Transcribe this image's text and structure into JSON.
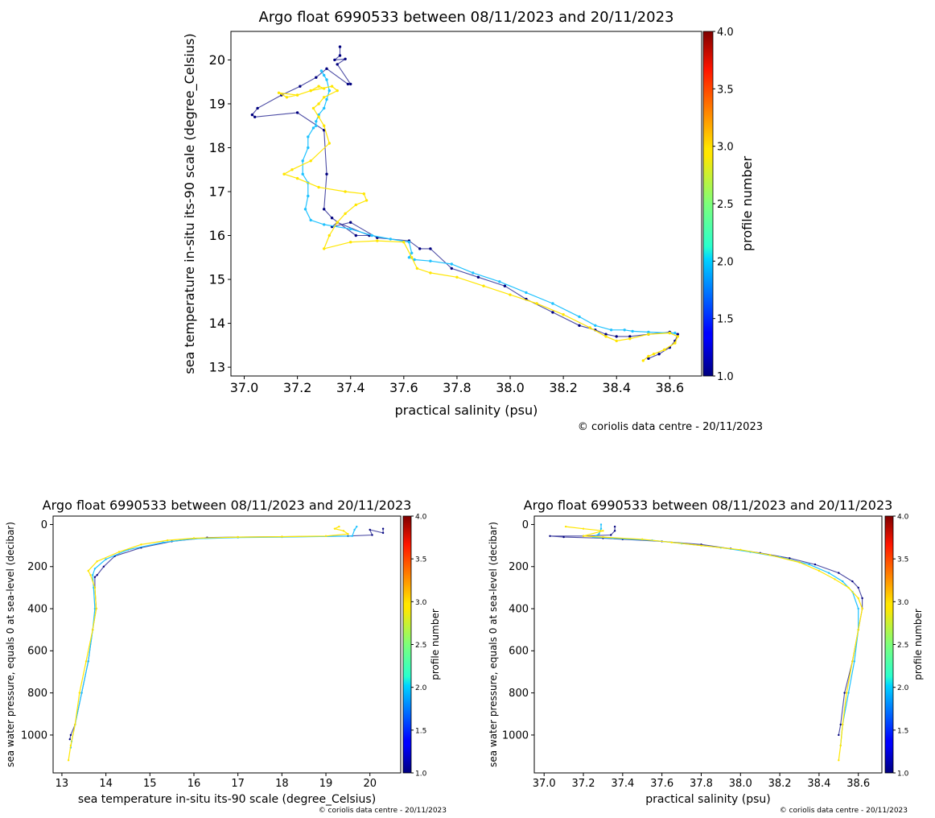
{
  "chart_data": [
    {
      "type": "scatter",
      "title": "Argo float 6990533 between 08/11/2023 and 20/11/2023",
      "xlabel": "practical salinity (psu)",
      "ylabel": "sea temperature in-situ its-90 scale (degree_Celsius)",
      "xlim": [
        36.95,
        38.72
      ],
      "ylim": [
        12.8,
        20.65
      ],
      "xticks": [
        "37.0",
        "37.2",
        "37.4",
        "37.6",
        "37.8",
        "38.0",
        "38.2",
        "38.4",
        "38.6"
      ],
      "yticks": [
        "13",
        "14",
        "15",
        "16",
        "17",
        "18",
        "19",
        "20"
      ],
      "colorbar": {
        "label": "profile number",
        "min": 1.0,
        "max": 4.0,
        "ticks": [
          "1.0",
          "1.5",
          "2.0",
          "2.5",
          "3.0",
          "3.5",
          "4.0"
        ]
      },
      "credit": "© coriolis data centre - 20/11/2023",
      "series": [
        {
          "profile": 1,
          "color": "#00007f",
          "x": [
            37.36,
            37.36,
            37.34,
            37.38,
            37.35,
            37.4,
            37.39,
            37.31,
            37.27,
            37.21,
            37.14,
            37.05,
            37.03,
            37.04,
            37.2,
            37.3,
            37.31,
            37.3,
            37.33,
            37.42,
            37.47,
            37.35,
            37.33,
            37.4,
            37.5,
            37.62,
            37.66,
            37.7,
            37.78,
            37.88,
            37.98,
            38.06,
            38.16,
            38.26,
            38.32,
            38.36,
            38.4,
            38.45,
            38.52,
            38.6,
            38.63,
            38.62,
            38.6,
            38.56,
            38.52
          ],
          "y": [
            20.3,
            20.1,
            20.0,
            20.02,
            19.9,
            19.45,
            19.45,
            19.8,
            19.6,
            19.4,
            19.2,
            18.9,
            18.75,
            18.7,
            18.8,
            18.4,
            17.4,
            16.6,
            16.4,
            16.0,
            16.0,
            16.3,
            16.2,
            16.3,
            15.95,
            15.88,
            15.7,
            15.7,
            15.25,
            15.05,
            14.85,
            14.55,
            14.25,
            13.95,
            13.85,
            13.75,
            13.7,
            13.7,
            13.75,
            13.8,
            13.75,
            13.6,
            13.45,
            13.3,
            13.2
          ]
        },
        {
          "profile": 2,
          "color": "#1fc2ff",
          "x": [
            37.29,
            37.3,
            37.31,
            37.32,
            37.31,
            37.3,
            37.28,
            37.27,
            37.27,
            37.26,
            37.24,
            37.24,
            37.22,
            37.22,
            37.24,
            37.24,
            37.23,
            37.25,
            37.3,
            37.4,
            37.48,
            37.55,
            37.62,
            37.63,
            37.62,
            37.64,
            37.7,
            37.78,
            37.86,
            37.96,
            38.06,
            38.16,
            38.26,
            38.32,
            38.38,
            38.43,
            38.46,
            38.52,
            38.6,
            38.62
          ],
          "y": [
            19.75,
            19.65,
            19.55,
            19.3,
            19.1,
            18.9,
            18.75,
            18.6,
            18.5,
            18.45,
            18.25,
            18.0,
            17.7,
            17.4,
            17.2,
            16.9,
            16.6,
            16.35,
            16.25,
            16.15,
            16.0,
            15.92,
            15.85,
            15.6,
            15.5,
            15.45,
            15.42,
            15.35,
            15.15,
            14.95,
            14.7,
            14.45,
            14.15,
            13.95,
            13.85,
            13.85,
            13.82,
            13.8,
            13.78,
            13.78
          ]
        },
        {
          "profile": 3,
          "color": "#ffe600",
          "x": [
            37.3,
            37.28,
            37.25,
            37.2,
            37.16,
            37.13,
            37.2,
            37.25,
            37.33,
            37.35,
            37.3,
            37.28,
            37.26,
            37.28,
            37.3,
            37.32,
            37.25,
            37.18,
            37.15,
            37.2,
            37.28,
            37.38,
            37.45,
            37.46,
            37.42,
            37.38,
            37.35,
            37.32,
            37.3,
            37.4,
            37.5,
            37.6,
            37.63,
            37.65,
            37.7,
            37.8,
            37.9,
            38.0,
            38.1,
            38.2,
            38.3,
            38.36,
            38.4,
            38.45,
            38.52,
            38.6,
            38.63,
            38.62,
            38.58,
            38.54,
            38.52,
            38.5
          ],
          "y": [
            19.35,
            19.4,
            19.3,
            19.2,
            19.15,
            19.25,
            19.2,
            19.3,
            19.4,
            19.3,
            19.15,
            19.0,
            18.9,
            18.7,
            18.5,
            18.1,
            17.7,
            17.5,
            17.4,
            17.3,
            17.1,
            17.0,
            16.95,
            16.8,
            16.7,
            16.5,
            16.3,
            16.0,
            15.7,
            15.85,
            15.88,
            15.85,
            15.5,
            15.25,
            15.15,
            15.05,
            14.85,
            14.65,
            14.45,
            14.2,
            13.9,
            13.7,
            13.6,
            13.65,
            13.75,
            13.78,
            13.7,
            13.55,
            13.4,
            13.3,
            13.25,
            13.15
          ]
        }
      ]
    },
    {
      "type": "scatter",
      "title": "Argo float 6990533 between 08/11/2023 and 20/11/2023",
      "xlabel": "sea temperature in-situ its-90 scale (degree_Celsius)",
      "ylabel": "sea water pressure, equals 0 at sea-level (decibar)",
      "xlim": [
        12.8,
        20.7
      ],
      "ylim": [
        1180,
        -40
      ],
      "xticks": [
        "13",
        "14",
        "15",
        "16",
        "17",
        "18",
        "19",
        "20"
      ],
      "yticks": [
        "0",
        "200",
        "400",
        "600",
        "800",
        "1000"
      ],
      "colorbar": {
        "label": "profile number",
        "min": 1.0,
        "max": 4.0,
        "ticks": [
          "1.0",
          "1.5",
          "2.0",
          "2.5",
          "3.0",
          "3.5",
          "4.0"
        ]
      },
      "credit": "© coriolis data centre - 20/11/2023",
      "series": [
        {
          "profile": 1,
          "color": "#00007f",
          "x": [
            20.3,
            20.3,
            20.0,
            20.05,
            19.5,
            18.0,
            17.0,
            16.3,
            15.5,
            14.8,
            14.2,
            13.95,
            13.8,
            13.75,
            13.75,
            13.78,
            13.7,
            13.6,
            13.45,
            13.3,
            13.2,
            13.18
          ],
          "y": [
            20,
            40,
            25,
            50,
            55,
            58,
            60,
            62,
            80,
            110,
            150,
            200,
            240,
            250,
            300,
            400,
            500,
            650,
            800,
            950,
            1000,
            1020
          ]
        },
        {
          "profile": 2,
          "color": "#1fc2ff",
          "x": [
            19.7,
            19.65,
            19.6,
            18.0,
            17.0,
            16.0,
            15.3,
            14.5,
            14.0,
            13.75,
            13.7,
            13.72,
            13.75,
            13.7,
            13.6,
            13.45,
            13.3,
            13.22,
            13.2
          ],
          "y": [
            10,
            25,
            55,
            60,
            62,
            68,
            85,
            120,
            165,
            210,
            240,
            300,
            400,
            500,
            650,
            800,
            950,
            1030,
            1060
          ]
        },
        {
          "profile": 3,
          "color": "#ffe600",
          "x": [
            19.3,
            19.2,
            19.4,
            19.5,
            19.0,
            18.0,
            17.0,
            16.0,
            15.4,
            14.8,
            14.3,
            13.8,
            13.6,
            13.65,
            13.75,
            13.78,
            13.7,
            13.55,
            13.4,
            13.3,
            13.2,
            13.15
          ],
          "y": [
            10,
            20,
            30,
            45,
            55,
            58,
            60,
            65,
            75,
            95,
            130,
            175,
            220,
            240,
            300,
            400,
            500,
            650,
            800,
            950,
            1050,
            1120
          ]
        }
      ]
    },
    {
      "type": "scatter",
      "title": "Argo float 6990533 between 08/11/2023 and 20/11/2023",
      "xlabel": "practical salinity (psu)",
      "ylabel": "sea water pressure, equals 0 at sea-level (decibar)",
      "xlim": [
        36.95,
        38.72
      ],
      "ylim": [
        1180,
        -40
      ],
      "xticks": [
        "37.0",
        "37.2",
        "37.4",
        "37.6",
        "37.8",
        "38.0",
        "38.2",
        "38.4",
        "38.6"
      ],
      "yticks": [
        "0",
        "200",
        "400",
        "600",
        "800",
        "1000"
      ],
      "colorbar": {
        "label": "profile number",
        "min": 1.0,
        "max": 4.0,
        "ticks": [
          "1.0",
          "1.5",
          "2.0",
          "2.5",
          "3.0",
          "3.5",
          "4.0"
        ]
      },
      "credit": "© coriolis data centre - 20/11/2023",
      "series": [
        {
          "profile": 1,
          "color": "#00007f",
          "x": [
            37.36,
            37.36,
            37.34,
            37.2,
            37.03,
            37.1,
            37.3,
            37.4,
            37.6,
            37.8,
            37.95,
            38.1,
            38.25,
            38.38,
            38.5,
            38.57,
            38.6,
            38.62,
            38.62,
            38.6,
            38.57,
            38.53,
            38.51,
            38.5
          ],
          "y": [
            10,
            30,
            50,
            55,
            55,
            60,
            65,
            70,
            80,
            95,
            115,
            135,
            160,
            190,
            230,
            270,
            300,
            350,
            400,
            500,
            650,
            800,
            950,
            1000
          ]
        },
        {
          "profile": 2,
          "color": "#1fc2ff",
          "x": [
            37.29,
            37.29,
            37.28,
            37.25,
            37.35,
            37.55,
            37.7,
            37.9,
            38.05,
            38.2,
            38.35,
            38.45,
            38.52,
            38.57,
            38.6,
            38.6,
            38.58,
            38.55,
            38.52,
            38.51
          ],
          "y": [
            0,
            20,
            45,
            60,
            65,
            75,
            90,
            110,
            130,
            155,
            190,
            230,
            270,
            320,
            400,
            500,
            650,
            800,
            950,
            1050
          ]
        },
        {
          "profile": 3,
          "color": "#ffe600",
          "x": [
            37.11,
            37.2,
            37.3,
            37.2,
            37.3,
            37.5,
            37.65,
            37.8,
            38.0,
            38.15,
            38.3,
            38.4,
            38.48,
            38.55,
            38.6,
            38.62,
            38.6,
            38.57,
            38.54,
            38.52,
            38.51,
            38.5
          ],
          "y": [
            10,
            20,
            30,
            55,
            60,
            70,
            85,
            100,
            120,
            145,
            180,
            220,
            260,
            300,
            350,
            400,
            500,
            650,
            800,
            950,
            1050,
            1120
          ]
        }
      ]
    }
  ]
}
